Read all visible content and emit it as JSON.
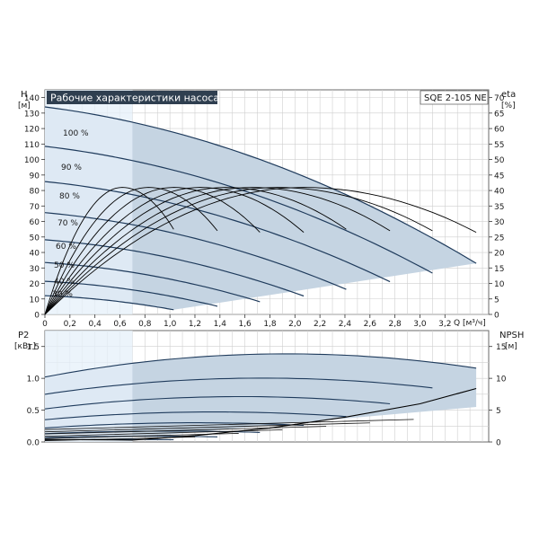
{
  "chart_data": [
    {
      "type": "line",
      "title": "Рабочие характеристики насоса",
      "model_label": "SQE 2-105 NE",
      "xlabel": "Q [м³/ч]",
      "ylabel_top": "H",
      "ylabel_unit": "[м]",
      "y2label_top": "eta",
      "y2label_unit": "[%]",
      "xlim": [
        0,
        3.55
      ],
      "ylim": [
        0,
        145
      ],
      "y2lim": [
        0,
        72.5
      ],
      "x_ticks": [
        0,
        0.2,
        0.4,
        0.6,
        0.8,
        1.0,
        1.2,
        1.4,
        1.6,
        1.8,
        2.0,
        2.2,
        2.4,
        2.6,
        2.8,
        3.0,
        3.2
      ],
      "x_tick_labels": [
        "0",
        "0,2",
        "0,4",
        "0,6",
        "0,8",
        "1,0",
        "1,2",
        "1,4",
        "1,6",
        "1,8",
        "2,0",
        "2,2",
        "2,4",
        "2,6",
        "2,8",
        "3,0",
        "3,2"
      ],
      "y_ticks": [
        0,
        10,
        20,
        30,
        40,
        50,
        60,
        70,
        80,
        90,
        100,
        110,
        120,
        130,
        140
      ],
      "y2_ticks": [
        0,
        5,
        10,
        15,
        20,
        25,
        30,
        35,
        40,
        45,
        50,
        55,
        60,
        65,
        70
      ],
      "grid": true,
      "colors": {
        "series": "#1f3b5c",
        "operating_range": "#c5d4e2",
        "low_flow_range": "#e6f0f9",
        "efficiency": "#000000",
        "title_bg": "#2f3f50"
      },
      "speed_curves": [
        {
          "label": "100 %",
          "H0": 134,
          "Qmax": 3.45,
          "Hend": 33
        },
        {
          "label": "90 %",
          "H0": 108.5,
          "Qmax": 3.1,
          "Hend": 26.7
        },
        {
          "label": "80 %",
          "H0": 85.8,
          "Qmax": 2.76,
          "Hend": 21.1
        },
        {
          "label": "70 %",
          "H0": 65.7,
          "Qmax": 2.41,
          "Hend": 16.2
        },
        {
          "label": "60 %",
          "H0": 48.2,
          "Qmax": 2.07,
          "Hend": 11.9
        },
        {
          "label": "50 %",
          "H0": 33.5,
          "Qmax": 1.72,
          "Hend": 8.2
        },
        {
          "label": "40 %",
          "H0": 21.4,
          "Qmax": 1.38,
          "Hend": 5.3
        },
        {
          "label": "30 %",
          "H0": 12.1,
          "Qmax": 1.03,
          "Hend": 3.0
        }
      ],
      "efficiency_curves": [
        {
          "speed": "100 %",
          "Qmax": 3.45,
          "eta_peak": 41,
          "eta_end": 26.5
        },
        {
          "speed": "90 %",
          "Qmax": 3.1,
          "eta_peak": 41,
          "eta_end": 27
        },
        {
          "speed": "80 %",
          "Qmax": 2.76,
          "eta_peak": 41,
          "eta_end": 27
        },
        {
          "speed": "70 %",
          "Qmax": 2.41,
          "eta_peak": 41,
          "eta_end": 27.5
        },
        {
          "speed": "60 %",
          "Qmax": 2.07,
          "eta_peak": 41,
          "eta_end": 26.5
        },
        {
          "speed": "50 %",
          "Qmax": 1.72,
          "eta_peak": 41,
          "eta_end": 26.5
        },
        {
          "speed": "40 %",
          "Qmax": 1.38,
          "eta_peak": 41,
          "eta_end": 27
        },
        {
          "speed": "30 %",
          "Qmax": 1.03,
          "eta_peak": 41,
          "eta_end": 27.5
        }
      ],
      "low_flow_limit_Q": 0.7
    },
    {
      "type": "line",
      "ylabel_top": "P2",
      "ylabel_unit": "[кВт]",
      "y2label_top": "NPSH",
      "y2label_unit": "[м]",
      "xlim": [
        0,
        3.55
      ],
      "ylim": [
        0,
        1.75
      ],
      "y2lim": [
        0,
        17.5
      ],
      "y_ticks": [
        0.0,
        0.5,
        1.0,
        1.5
      ],
      "y_tick_labels": [
        "0.0",
        "0.5",
        "1.0",
        "1.5"
      ],
      "y2_ticks": [
        0,
        5,
        10,
        15
      ],
      "grid": true,
      "power_curves": [
        {
          "speed": "100 %",
          "P0": 1.02,
          "Pmid": 1.38,
          "Pend": 1.16,
          "Qmax": 3.45
        },
        {
          "speed": "90 %",
          "P0": 0.75,
          "Pmid": 1.0,
          "Pend": 0.85,
          "Qmax": 3.1
        },
        {
          "speed": "80 %",
          "P0": 0.52,
          "Pmid": 0.71,
          "Pend": 0.6,
          "Qmax": 2.76
        },
        {
          "speed": "70 %",
          "P0": 0.35,
          "Pmid": 0.47,
          "Pend": 0.4,
          "Qmax": 2.41
        },
        {
          "speed": "60 %",
          "P0": 0.22,
          "Pmid": 0.3,
          "Pend": 0.26,
          "Qmax": 2.07
        },
        {
          "speed": "50 %",
          "P0": 0.13,
          "Pmid": 0.17,
          "Pend": 0.15,
          "Qmax": 1.72
        },
        {
          "speed": "40 %",
          "P0": 0.07,
          "Pmid": 0.09,
          "Pend": 0.08,
          "Qmax": 1.38
        },
        {
          "speed": "30 %",
          "P0": 0.03,
          "Pmid": 0.04,
          "Pend": 0.035,
          "Qmax": 1.03
        }
      ],
      "npsh_curve": {
        "Q": [
          0.7,
          1.2,
          1.8,
          2.4,
          3.0,
          3.45
        ],
        "NPSH": [
          0.3,
          1.0,
          2.2,
          3.9,
          6.0,
          8.4
        ]
      }
    }
  ]
}
